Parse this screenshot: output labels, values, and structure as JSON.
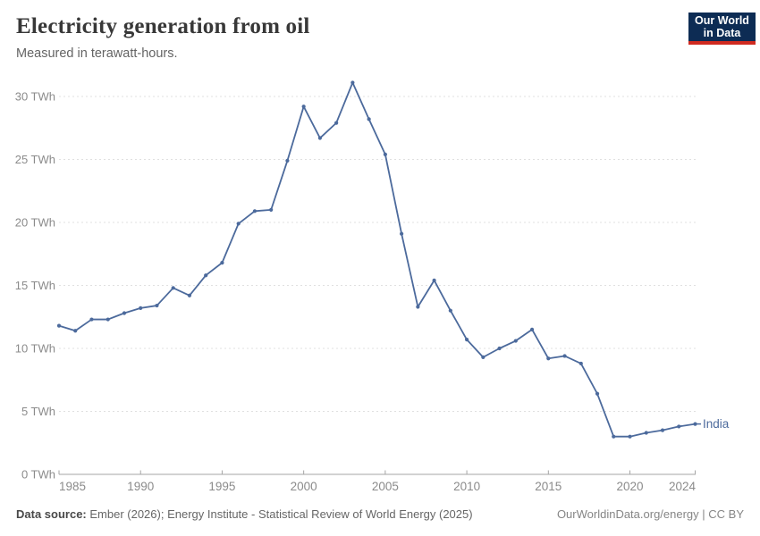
{
  "header": {
    "title": "Electricity generation from oil",
    "subtitle": "Measured in terawatt-hours.",
    "logo_line1": "Our World",
    "logo_line2": "in Data"
  },
  "chart_data": {
    "type": "line",
    "title": "Electricity generation from oil",
    "subtitle": "Measured in terawatt-hours.",
    "unit": "TWh",
    "x": [
      1985,
      1986,
      1987,
      1988,
      1989,
      1990,
      1991,
      1992,
      1993,
      1994,
      1995,
      1996,
      1997,
      1998,
      1999,
      2000,
      2001,
      2002,
      2003,
      2004,
      2005,
      2006,
      2007,
      2008,
      2009,
      2010,
      2011,
      2012,
      2013,
      2014,
      2015,
      2016,
      2017,
      2018,
      2019,
      2020,
      2021,
      2022,
      2023,
      2024
    ],
    "series": [
      {
        "name": "India",
        "color": "#4c6a9c",
        "values": [
          11.8,
          11.4,
          12.3,
          12.3,
          12.8,
          13.2,
          13.4,
          14.8,
          14.2,
          15.8,
          16.8,
          19.9,
          20.9,
          21.0,
          24.9,
          29.2,
          26.7,
          27.9,
          31.1,
          28.2,
          25.4,
          19.1,
          13.3,
          15.4,
          13.0,
          10.7,
          9.3,
          10.0,
          10.6,
          11.5,
          9.2,
          9.4,
          8.8,
          6.4,
          3.0,
          3.0,
          3.3,
          3.5,
          3.8,
          4.0
        ]
      }
    ],
    "xlim": [
      1985,
      2024
    ],
    "ylim": [
      0,
      30
    ],
    "yticks": [
      0,
      5,
      10,
      15,
      20,
      25,
      30
    ],
    "ytick_suffix": " TWh",
    "xticks": [
      1985,
      1990,
      1995,
      2000,
      2005,
      2010,
      2015,
      2020,
      2024
    ],
    "grid": "horizontal-dashed",
    "legend_position": "end-of-line"
  },
  "footer": {
    "source_label": "Data source:",
    "source_text": " Ember (2026); Energy Institute - Statistical Review of World Energy (2025)",
    "credit": "OurWorldinData.org/energy | CC BY"
  },
  "colors": {
    "line": "#4c6a9c",
    "grid": "#e0e0e0",
    "axis": "#a5a5a5",
    "tick_label": "#8b8b8b",
    "logo_bg": "#0d2c54",
    "logo_bar": "#d02a20"
  }
}
